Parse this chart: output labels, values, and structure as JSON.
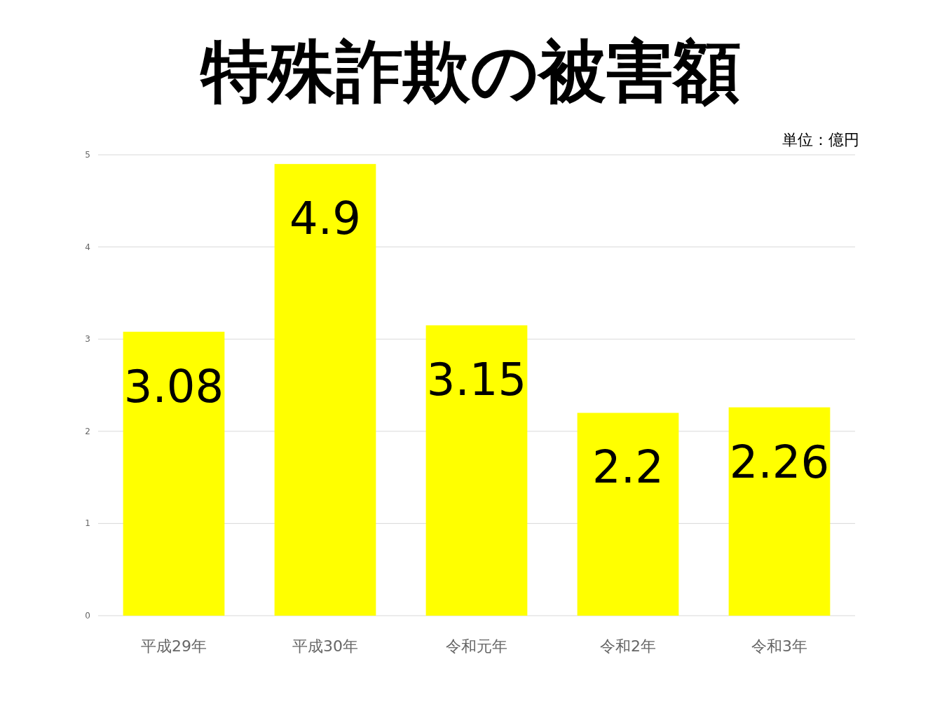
{
  "chart_data": {
    "type": "bar",
    "title": "特殊詐欺の被害額",
    "annotations": [
      "単位：億円"
    ],
    "categories": [
      "平成29年",
      "平成30年",
      "令和元年",
      "令和2年",
      "令和3年"
    ],
    "values": [
      3.08,
      4.9,
      3.15,
      2.2,
      2.26
    ],
    "color": "#ffff00",
    "ylim": [
      0,
      5
    ],
    "yticks": [
      0,
      1,
      2,
      3,
      4,
      5
    ],
    "grid": "y",
    "data_labels": true
  }
}
